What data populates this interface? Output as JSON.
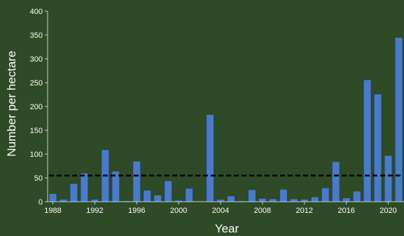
{
  "chart_data": {
    "type": "bar",
    "title": "",
    "xlabel": "Year",
    "ylabel": "Number per hectare",
    "ylim": [
      0,
      400
    ],
    "yticks": [
      0,
      50,
      100,
      150,
      200,
      250,
      300,
      350,
      400
    ],
    "x_tick_labels": [
      "1988",
      "1992",
      "1996",
      "2000",
      "2004",
      "2008",
      "2012",
      "2016",
      "2020"
    ],
    "x_tick_years": [
      1988,
      1992,
      1996,
      2000,
      2004,
      2008,
      2012,
      2016,
      2020
    ],
    "categories": [
      1988,
      1989,
      1990,
      1991,
      1992,
      1993,
      1994,
      1995,
      1996,
      1997,
      1998,
      1999,
      2000,
      2001,
      2002,
      2003,
      2004,
      2005,
      2006,
      2007,
      2008,
      2009,
      2010,
      2011,
      2012,
      2013,
      2014,
      2015,
      2016,
      2017,
      2018,
      2019,
      2020,
      2021
    ],
    "values": [
      17,
      5,
      38,
      60,
      5,
      109,
      64,
      2,
      85,
      24,
      14,
      44,
      3,
      28,
      0,
      183,
      5,
      12,
      2,
      25,
      7,
      6,
      26,
      6,
      5,
      10,
      29,
      84,
      8,
      22,
      256,
      226,
      97,
      345
    ],
    "reference_line": {
      "value": 55,
      "style": "dashed"
    },
    "grid": false,
    "legend": "none",
    "colors": {
      "background": "#2e4a26",
      "bar_fill": "#4a7bc4",
      "bar_edge": "#1f3f73",
      "axis": "#c8d4c0",
      "text": "#ffffff",
      "reference_line": "#000000"
    }
  }
}
